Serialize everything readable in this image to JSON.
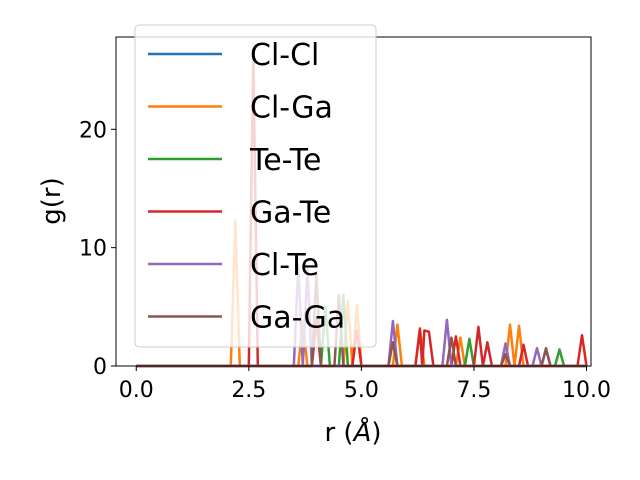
{
  "chart_data": {
    "type": "line",
    "xlabel_prefix": "r (",
    "xlabel_unit": "Å",
    "xlabel_suffix": ")",
    "ylabel": "g(r)",
    "xlim": [
      -0.45,
      10.1
    ],
    "ylim": [
      0,
      27.8
    ],
    "xticks": [
      0.0,
      2.5,
      5.0,
      7.5,
      10.0
    ],
    "xtick_labels": [
      "0.0",
      "2.5",
      "5.0",
      "7.5",
      "10.0"
    ],
    "yticks": [
      0,
      10,
      20
    ],
    "ytick_labels": [
      "0",
      "10",
      "20"
    ],
    "grid": false,
    "legend_position": "upper-left",
    "series": [
      {
        "name": "Cl-Cl",
        "color": "#1f77b4",
        "points": [
          [
            0.0,
            0
          ],
          [
            10.0,
            0
          ]
        ]
      },
      {
        "name": "Cl-Ga",
        "color": "#ff7f0e",
        "points": [
          [
            0.0,
            0
          ],
          [
            2.1,
            0
          ],
          [
            2.2,
            12.3
          ],
          [
            2.3,
            0
          ],
          [
            3.6,
            0
          ],
          [
            3.7,
            3.8
          ],
          [
            3.8,
            0
          ],
          [
            4.6,
            0
          ],
          [
            4.7,
            5.5
          ],
          [
            4.8,
            0
          ],
          [
            4.9,
            5.2
          ],
          [
            5.0,
            0
          ],
          [
            5.7,
            0
          ],
          [
            5.8,
            3.5
          ],
          [
            5.9,
            0
          ],
          [
            6.2,
            0
          ],
          [
            6.3,
            3.2
          ],
          [
            6.4,
            0
          ],
          [
            7.1,
            0
          ],
          [
            7.2,
            2.4
          ],
          [
            7.3,
            0
          ],
          [
            8.2,
            0
          ],
          [
            8.3,
            3.5
          ],
          [
            8.4,
            0
          ],
          [
            8.5,
            3.4
          ],
          [
            8.6,
            0
          ],
          [
            10.0,
            0
          ]
        ]
      },
      {
        "name": "Te-Te",
        "color": "#2ca02c",
        "points": [
          [
            0.0,
            0
          ],
          [
            4.1,
            0
          ],
          [
            4.2,
            5.0
          ],
          [
            4.3,
            0
          ],
          [
            4.5,
            0
          ],
          [
            4.6,
            6.0
          ],
          [
            4.7,
            0
          ],
          [
            7.3,
            0
          ],
          [
            7.4,
            2.3
          ],
          [
            7.5,
            0
          ],
          [
            9.3,
            0
          ],
          [
            9.4,
            1.4
          ],
          [
            9.5,
            0
          ],
          [
            10.0,
            0
          ]
        ]
      },
      {
        "name": "Ga-Te",
        "color": "#d62728",
        "points": [
          [
            0.0,
            0
          ],
          [
            2.5,
            0
          ],
          [
            2.6,
            26.5
          ],
          [
            2.7,
            0
          ],
          [
            3.9,
            0
          ],
          [
            4.0,
            4.0
          ],
          [
            4.1,
            0
          ],
          [
            4.8,
            0
          ],
          [
            4.9,
            3.0
          ],
          [
            5.0,
            0
          ],
          [
            6.2,
            0
          ],
          [
            6.3,
            3.1
          ],
          [
            6.35,
            0
          ],
          [
            6.4,
            3.0
          ],
          [
            6.5,
            2.9
          ],
          [
            6.6,
            0
          ],
          [
            7.0,
            0
          ],
          [
            7.1,
            2.5
          ],
          [
            7.2,
            0
          ],
          [
            7.5,
            0
          ],
          [
            7.6,
            3.3
          ],
          [
            7.7,
            0
          ],
          [
            7.8,
            2.0
          ],
          [
            7.9,
            0
          ],
          [
            8.5,
            0
          ],
          [
            8.6,
            1.8
          ],
          [
            8.7,
            0
          ],
          [
            9.8,
            0
          ],
          [
            9.9,
            2.6
          ],
          [
            10.0,
            0
          ]
        ]
      },
      {
        "name": "Cl-Te",
        "color": "#9467bd",
        "points": [
          [
            0.0,
            0
          ],
          [
            3.5,
            0
          ],
          [
            3.6,
            8.5
          ],
          [
            3.7,
            0
          ],
          [
            3.8,
            8.2
          ],
          [
            3.9,
            0
          ],
          [
            5.6,
            0
          ],
          [
            5.7,
            3.8
          ],
          [
            5.8,
            0
          ],
          [
            6.8,
            0
          ],
          [
            6.9,
            3.9
          ],
          [
            7.0,
            0
          ],
          [
            8.1,
            0
          ],
          [
            8.2,
            1.9
          ],
          [
            8.3,
            0
          ],
          [
            8.8,
            0
          ],
          [
            8.9,
            1.5
          ],
          [
            9.0,
            0
          ],
          [
            9.1,
            1.4
          ],
          [
            9.2,
            0
          ],
          [
            10.0,
            0
          ]
        ]
      },
      {
        "name": "Ga-Ga",
        "color": "#8c564b",
        "points": [
          [
            0.0,
            0
          ],
          [
            3.9,
            0
          ],
          [
            4.0,
            7.8
          ],
          [
            4.1,
            0
          ],
          [
            4.4,
            0
          ],
          [
            4.5,
            6.0
          ],
          [
            4.6,
            0
          ],
          [
            5.6,
            0
          ],
          [
            5.7,
            2.0
          ],
          [
            5.8,
            0
          ],
          [
            6.9,
            0
          ],
          [
            7.0,
            2.4
          ],
          [
            7.1,
            0
          ],
          [
            8.1,
            0
          ],
          [
            8.2,
            1.0
          ],
          [
            8.3,
            0
          ],
          [
            9.0,
            0
          ],
          [
            9.1,
            1.5
          ],
          [
            9.2,
            0
          ],
          [
            10.0,
            0
          ]
        ]
      }
    ]
  }
}
